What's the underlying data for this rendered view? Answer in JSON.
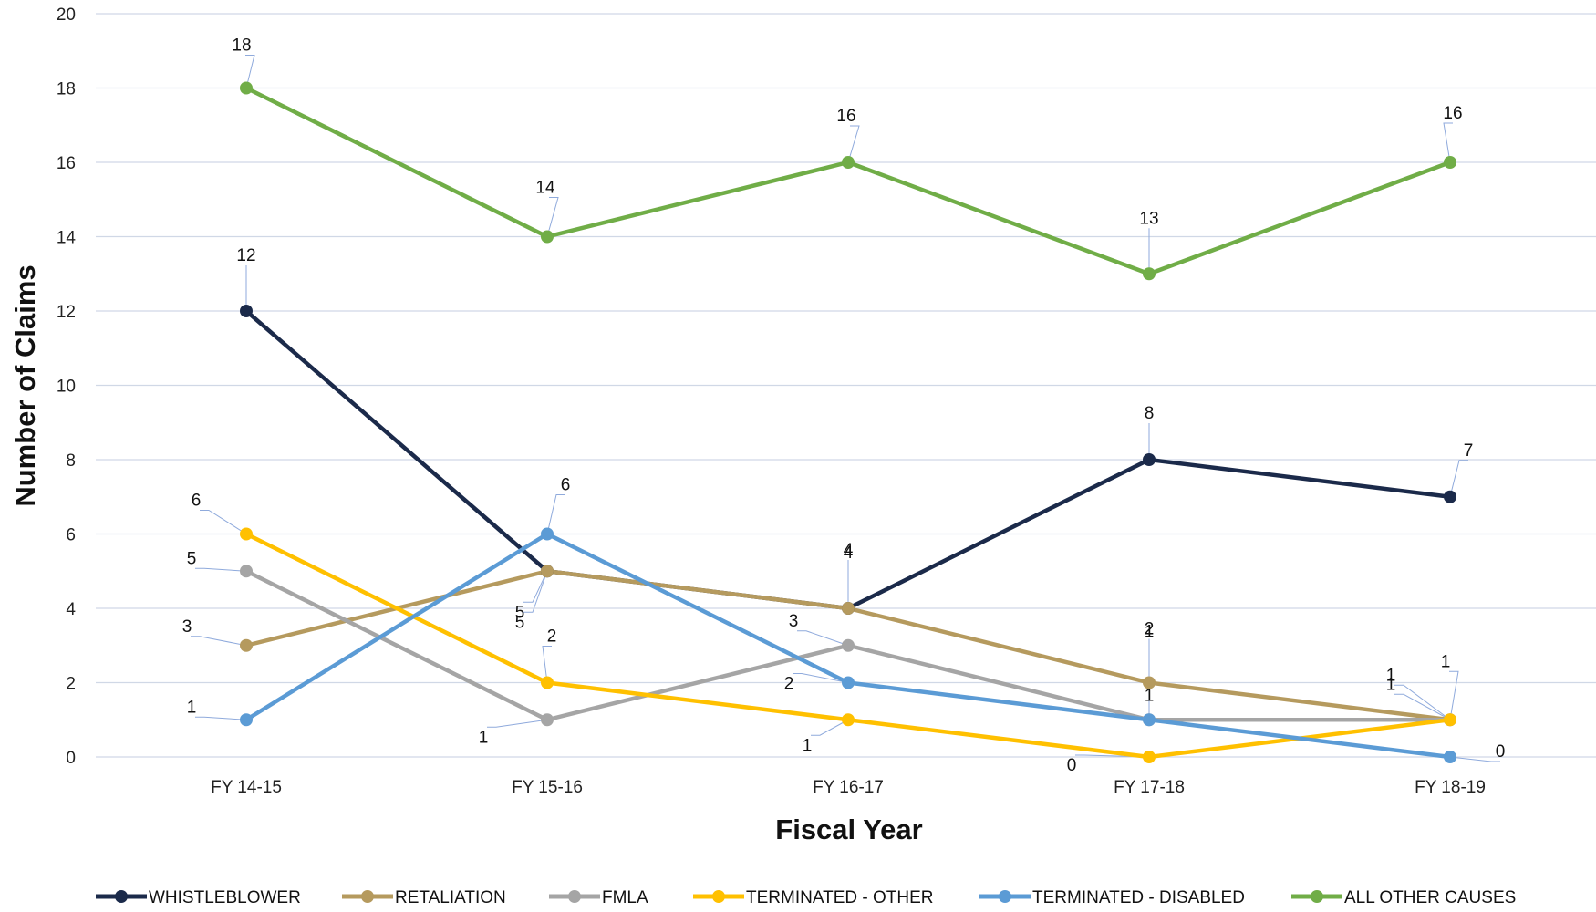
{
  "chart_data": {
    "type": "line",
    "title": "",
    "xlabel": "Fiscal Year",
    "ylabel": "Number of Claims",
    "ylim": [
      0,
      20
    ],
    "y_ticks": [
      0,
      2,
      4,
      6,
      8,
      10,
      12,
      14,
      16,
      18,
      20
    ],
    "grid": true,
    "legend_position": "bottom",
    "categories": [
      "FY 14-15",
      "FY 15-16",
      "FY 16-17",
      "FY 17-18",
      "FY 18-19"
    ],
    "series": [
      {
        "name": "WHISTLEBLOWER",
        "color": "#1b2a4a",
        "values": [
          12,
          5,
          4,
          8,
          7
        ]
      },
      {
        "name": "RETALIATION",
        "color": "#b59a5e",
        "values": [
          3,
          5,
          4,
          2,
          1
        ]
      },
      {
        "name": "FMLA",
        "color": "#a5a5a5",
        "values": [
          5,
          1,
          3,
          1,
          1
        ]
      },
      {
        "name": "TERMINATED - OTHER",
        "color": "#ffc000",
        "values": [
          6,
          2,
          1,
          0,
          1
        ]
      },
      {
        "name": "TERMINATED - DISABLED",
        "color": "#5b9bd5",
        "values": [
          1,
          6,
          2,
          1,
          0
        ]
      },
      {
        "name": "ALL OTHER CAUSES",
        "color": "#70ad47",
        "values": [
          18,
          14,
          16,
          13,
          16
        ]
      }
    ]
  }
}
